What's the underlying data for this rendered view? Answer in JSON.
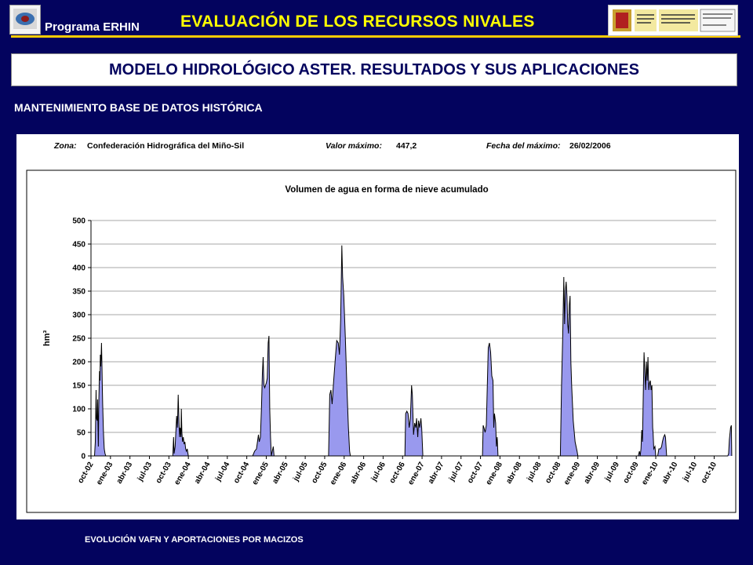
{
  "header": {
    "program": "Programa ERHIN",
    "title": "EVALUACIÓN DE LOS RECURSOS NIVALES",
    "accent_color": "#ffff00",
    "rule_color": "#ffcc00"
  },
  "subtitle": "MODELO HIDROLÓGICO ASTER. RESULTADOS Y SUS APLICACIONES",
  "section": "MANTENIMIENTO BASE DE DATOS HISTÓRICA",
  "info": {
    "zone_label": "Zona:",
    "zone_value": "Confederación Hidrográfica del Miño-Sil",
    "max_label": "Valor máximo:",
    "max_value": "447,2",
    "date_label": "Fecha del máximo:",
    "date_value": "26/02/2006"
  },
  "footer": "EVOLUCIÓN VAFN Y APORTACIONES POR MACIZOS",
  "chart_data": {
    "type": "area",
    "title": "Volumen de agua en forma de nieve acumulado",
    "xlabel": "",
    "ylabel": "hm³",
    "ylim": [
      0,
      500
    ],
    "yticks": [
      "0",
      "50",
      "100",
      "150",
      "200",
      "250",
      "300",
      "350",
      "400",
      "450",
      "500"
    ],
    "grid": true,
    "fill_color": "#9999ee",
    "line_color": "#000000",
    "categories": [
      "oct-02",
      "ene-03",
      "abr-03",
      "jul-03",
      "oct-03",
      "ene-04",
      "abr-04",
      "jul-04",
      "oct-04",
      "ene-05",
      "abr-05",
      "jul-05",
      "oct-05",
      "ene-06",
      "abr-06",
      "jul-06",
      "oct-06",
      "ene-07",
      "abr-07",
      "jul-07",
      "oct-07",
      "ene-08",
      "abr-08",
      "jul-08",
      "oct-08",
      "ene-09",
      "abr-09",
      "jul-09",
      "oct-09",
      "ene-10",
      "abr-10",
      "jul-10",
      "oct-10"
    ],
    "series": [
      {
        "points": [
          [
            0.0,
            0
          ],
          [
            0.18,
            0
          ],
          [
            0.22,
            30
          ],
          [
            0.26,
            140
          ],
          [
            0.28,
            80
          ],
          [
            0.32,
            75
          ],
          [
            0.34,
            120
          ],
          [
            0.36,
            70
          ],
          [
            0.38,
            20
          ],
          [
            0.4,
            110
          ],
          [
            0.44,
            180
          ],
          [
            0.46,
            160
          ],
          [
            0.48,
            215
          ],
          [
            0.5,
            190
          ],
          [
            0.52,
            210
          ],
          [
            0.54,
            240
          ],
          [
            0.56,
            200
          ],
          [
            0.58,
            150
          ],
          [
            0.6,
            110
          ],
          [
            0.64,
            50
          ],
          [
            0.68,
            15
          ],
          [
            0.72,
            5
          ],
          [
            0.76,
            0
          ],
          [
            4.0,
            0
          ],
          [
            4.2,
            0
          ],
          [
            4.24,
            40
          ],
          [
            4.27,
            5
          ],
          [
            4.32,
            20
          ],
          [
            4.4,
            85
          ],
          [
            4.44,
            60
          ],
          [
            4.48,
            130
          ],
          [
            4.52,
            70
          ],
          [
            4.55,
            40
          ],
          [
            4.58,
            60
          ],
          [
            4.62,
            40
          ],
          [
            4.64,
            100
          ],
          [
            4.67,
            50
          ],
          [
            4.7,
            30
          ],
          [
            4.74,
            40
          ],
          [
            4.78,
            25
          ],
          [
            4.82,
            30
          ],
          [
            4.86,
            15
          ],
          [
            4.9,
            10
          ],
          [
            4.94,
            15
          ],
          [
            5.0,
            0
          ],
          [
            8.0,
            0
          ],
          [
            8.3,
            0
          ],
          [
            8.4,
            10
          ],
          [
            8.5,
            15
          ],
          [
            8.6,
            45
          ],
          [
            8.64,
            30
          ],
          [
            8.7,
            40
          ],
          [
            8.75,
            100
          ],
          [
            8.8,
            175
          ],
          [
            8.84,
            210
          ],
          [
            8.88,
            150
          ],
          [
            8.92,
            145
          ],
          [
            8.96,
            150
          ],
          [
            9.0,
            155
          ],
          [
            9.05,
            165
          ],
          [
            9.1,
            240
          ],
          [
            9.14,
            255
          ],
          [
            9.18,
            100
          ],
          [
            9.22,
            40
          ],
          [
            9.26,
            0
          ],
          [
            9.36,
            20
          ],
          [
            9.4,
            0
          ],
          [
            12.0,
            0
          ],
          [
            12.2,
            0
          ],
          [
            12.26,
            130
          ],
          [
            12.32,
            140
          ],
          [
            12.38,
            110
          ],
          [
            12.46,
            160
          ],
          [
            12.54,
            205
          ],
          [
            12.62,
            245
          ],
          [
            12.7,
            240
          ],
          [
            12.76,
            215
          ],
          [
            12.82,
            290
          ],
          [
            12.88,
            447
          ],
          [
            12.92,
            380
          ],
          [
            12.98,
            340
          ],
          [
            13.06,
            250
          ],
          [
            13.14,
            150
          ],
          [
            13.22,
            60
          ],
          [
            13.28,
            10
          ],
          [
            13.32,
            0
          ],
          [
            16.0,
            0
          ],
          [
            16.12,
            0
          ],
          [
            16.16,
            90
          ],
          [
            16.22,
            95
          ],
          [
            16.28,
            90
          ],
          [
            16.34,
            60
          ],
          [
            16.4,
            80
          ],
          [
            16.46,
            150
          ],
          [
            16.5,
            130
          ],
          [
            16.56,
            45
          ],
          [
            16.62,
            70
          ],
          [
            16.68,
            60
          ],
          [
            16.72,
            80
          ],
          [
            16.78,
            40
          ],
          [
            16.82,
            75
          ],
          [
            16.88,
            60
          ],
          [
            16.94,
            80
          ],
          [
            16.98,
            60
          ],
          [
            17.04,
            0
          ],
          [
            20.0,
            0
          ],
          [
            20.1,
            0
          ],
          [
            20.14,
            65
          ],
          [
            20.18,
            60
          ],
          [
            20.24,
            50
          ],
          [
            20.3,
            65
          ],
          [
            20.4,
            230
          ],
          [
            20.46,
            240
          ],
          [
            20.52,
            220
          ],
          [
            20.58,
            170
          ],
          [
            20.64,
            160
          ],
          [
            20.68,
            60
          ],
          [
            20.72,
            90
          ],
          [
            20.78,
            70
          ],
          [
            20.82,
            20
          ],
          [
            20.86,
            40
          ],
          [
            20.9,
            0
          ],
          [
            24.0,
            0
          ],
          [
            24.1,
            0
          ],
          [
            24.16,
            150
          ],
          [
            24.22,
            255
          ],
          [
            24.28,
            380
          ],
          [
            24.32,
            280
          ],
          [
            24.36,
            350
          ],
          [
            24.4,
            370
          ],
          [
            24.44,
            340
          ],
          [
            24.48,
            280
          ],
          [
            24.52,
            260
          ],
          [
            24.56,
            320
          ],
          [
            24.6,
            340
          ],
          [
            24.64,
            200
          ],
          [
            24.68,
            150
          ],
          [
            24.76,
            75
          ],
          [
            24.86,
            30
          ],
          [
            24.96,
            10
          ],
          [
            25.0,
            0
          ],
          [
            28.0,
            0
          ],
          [
            28.1,
            0
          ],
          [
            28.16,
            10
          ],
          [
            28.2,
            0
          ],
          [
            28.24,
            15
          ],
          [
            28.28,
            55
          ],
          [
            28.32,
            30
          ],
          [
            28.36,
            130
          ],
          [
            28.4,
            220
          ],
          [
            28.44,
            180
          ],
          [
            28.48,
            140
          ],
          [
            28.52,
            200
          ],
          [
            28.56,
            160
          ],
          [
            28.6,
            210
          ],
          [
            28.64,
            140
          ],
          [
            28.68,
            155
          ],
          [
            28.72,
            160
          ],
          [
            28.76,
            140
          ],
          [
            28.8,
            150
          ],
          [
            28.84,
            60
          ],
          [
            28.86,
            50
          ],
          [
            28.9,
            15
          ],
          [
            28.96,
            20
          ],
          [
            29.0,
            0
          ],
          [
            29.1,
            0
          ],
          [
            29.16,
            15
          ],
          [
            29.24,
            15
          ],
          [
            29.3,
            20
          ],
          [
            29.34,
            30
          ],
          [
            29.4,
            40
          ],
          [
            29.46,
            45
          ],
          [
            29.5,
            40
          ],
          [
            29.56,
            0
          ],
          [
            32.7,
            0
          ],
          [
            32.74,
            5
          ],
          [
            32.78,
            35
          ],
          [
            32.84,
            60
          ],
          [
            32.88,
            65
          ],
          [
            32.9,
            0
          ]
        ]
      }
    ]
  }
}
